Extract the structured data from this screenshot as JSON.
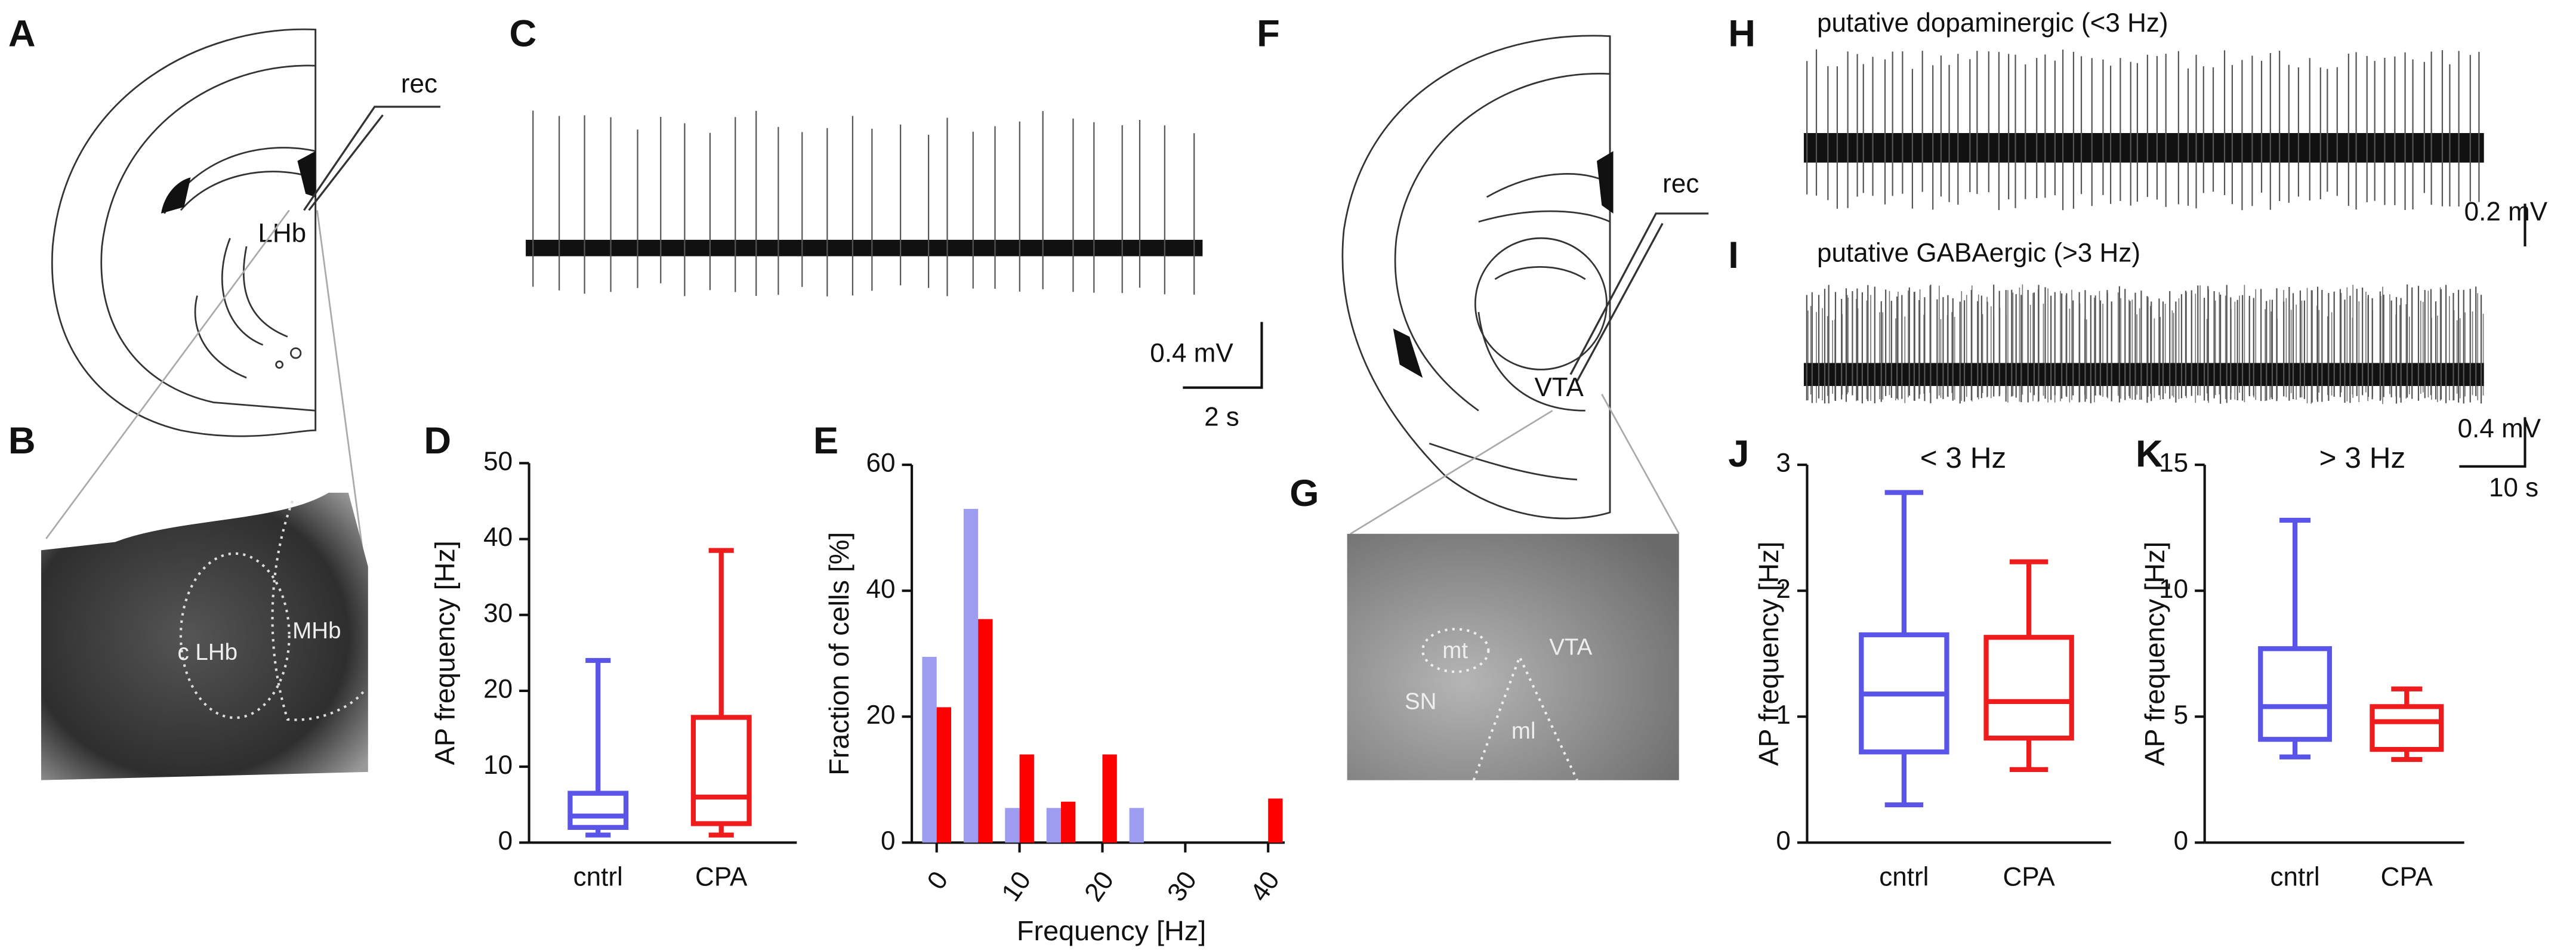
{
  "figure": {
    "panel_labels": [
      "A",
      "B",
      "C",
      "D",
      "E",
      "F",
      "G",
      "H",
      "I",
      "J",
      "K"
    ],
    "annotations": {
      "rec_a": "rec",
      "lhb": "LHb",
      "c_lhb": "c LHb",
      "mhb": "MHb",
      "rec_f": "rec",
      "vta": "VTA",
      "mt": "mt",
      "vta_img": "VTA",
      "sn": "SN",
      "ml": "ml"
    },
    "trace_titles": [
      "putative dopaminergic (<3 Hz)",
      "putative GABAergic (>3 Hz)"
    ],
    "scale_bars": {
      "c_v": "0.4 mV",
      "c_h": "2 s",
      "h_v": "0.2 mV",
      "i_v": "0.4 mV",
      "i_h": "10 s"
    }
  },
  "chart_data": [
    {
      "type": "box",
      "ylabel": "AP frequency [Hz]",
      "categories": [
        "cntrl",
        "CPA"
      ],
      "colors": [
        "#5a55e8",
        "#ee1c1c"
      ],
      "min": [
        1,
        1
      ],
      "q1": [
        2,
        2.5
      ],
      "median": [
        3.5,
        6
      ],
      "q3": [
        6.5,
        16.5
      ],
      "max": [
        24,
        38.5
      ],
      "ylim": [
        0,
        50
      ],
      "yticks": [
        0,
        10,
        20,
        30,
        40,
        50
      ]
    },
    {
      "type": "bar",
      "xlabel": "Frequency [Hz]",
      "ylabel": "Fraction of cells [%]",
      "x": [
        0,
        5,
        10,
        15,
        20,
        25,
        30,
        35,
        40
      ],
      "series": [
        {
          "color": "#9d9cf0",
          "values": [
            29.5,
            53,
            5.5,
            5.5,
            0,
            5.5,
            0,
            0,
            0
          ]
        },
        {
          "color": "#ff0000",
          "values": [
            21.5,
            35.5,
            14,
            6.5,
            14,
            0,
            0,
            0,
            7
          ]
        }
      ],
      "xlim": [
        -3,
        42
      ],
      "xticks": [
        0,
        10,
        20,
        30,
        40
      ],
      "ylim": [
        0,
        60
      ],
      "yticks": [
        0,
        20,
        40,
        60
      ]
    },
    {
      "type": "box",
      "title": "< 3 Hz",
      "ylabel": "AP frequency [Hz]",
      "categories": [
        "cntrl",
        "CPA"
      ],
      "colors": [
        "#5a55e8",
        "#ee1c1c"
      ],
      "min": [
        0.3,
        0.58
      ],
      "q1": [
        0.72,
        0.83
      ],
      "median": [
        1.18,
        1.12
      ],
      "q3": [
        1.65,
        1.63
      ],
      "max": [
        2.78,
        2.23
      ],
      "ylim": [
        0,
        3
      ],
      "yticks": [
        0,
        1,
        2,
        3
      ]
    },
    {
      "type": "box",
      "title": "> 3 Hz",
      "ylabel": "AP frequency [Hz]",
      "categories": [
        "cntrl",
        "CPA"
      ],
      "colors": [
        "#5a55e8",
        "#ee1c1c"
      ],
      "min": [
        3.4,
        3.3
      ],
      "q1": [
        4.1,
        3.7
      ],
      "median": [
        5.4,
        4.8
      ],
      "q3": [
        7.7,
        5.4
      ],
      "max": [
        12.8,
        6.1
      ],
      "ylim": [
        0,
        15
      ],
      "yticks": [
        0,
        5,
        10,
        15
      ]
    }
  ]
}
